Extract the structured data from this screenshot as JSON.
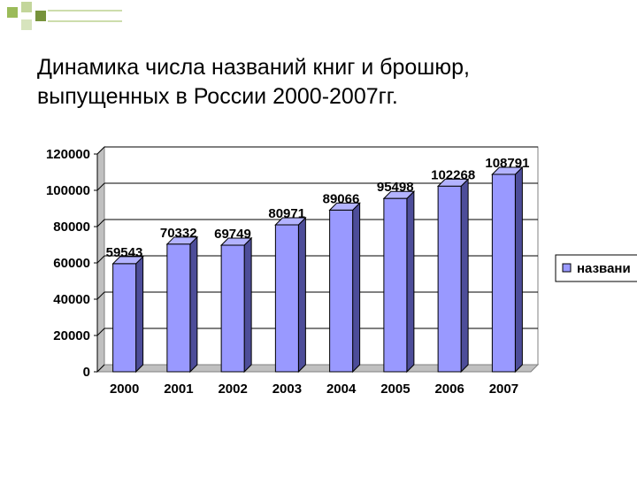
{
  "slide": {
    "title_line1": "Динамика числа названий книг и брошюр,",
    "title_line2": "выпущенных в России 2000-2007гг."
  },
  "colors": {
    "bar_front": "#9999ff",
    "bar_side": "#4d4d99",
    "bar_top": "#b3b3ff",
    "deco_green": "#9bbb59"
  },
  "chart_data": {
    "type": "bar",
    "categories": [
      "2000",
      "2001",
      "2002",
      "2003",
      "2004",
      "2005",
      "2006",
      "2007"
    ],
    "series": [
      {
        "name": "названи",
        "values": [
          59543,
          70332,
          69749,
          80971,
          89066,
          95498,
          102268,
          108791
        ]
      }
    ],
    "data_labels": [
      "59543",
      "70332",
      "69749",
      "80971",
      "89066",
      "95498",
      "102268",
      "108791"
    ],
    "yticks": [
      "0",
      "20000",
      "40000",
      "60000",
      "80000",
      "100000",
      "120000"
    ],
    "ylim": [
      0,
      120000
    ],
    "grid": true,
    "legend_position": "right",
    "style": "3d"
  }
}
